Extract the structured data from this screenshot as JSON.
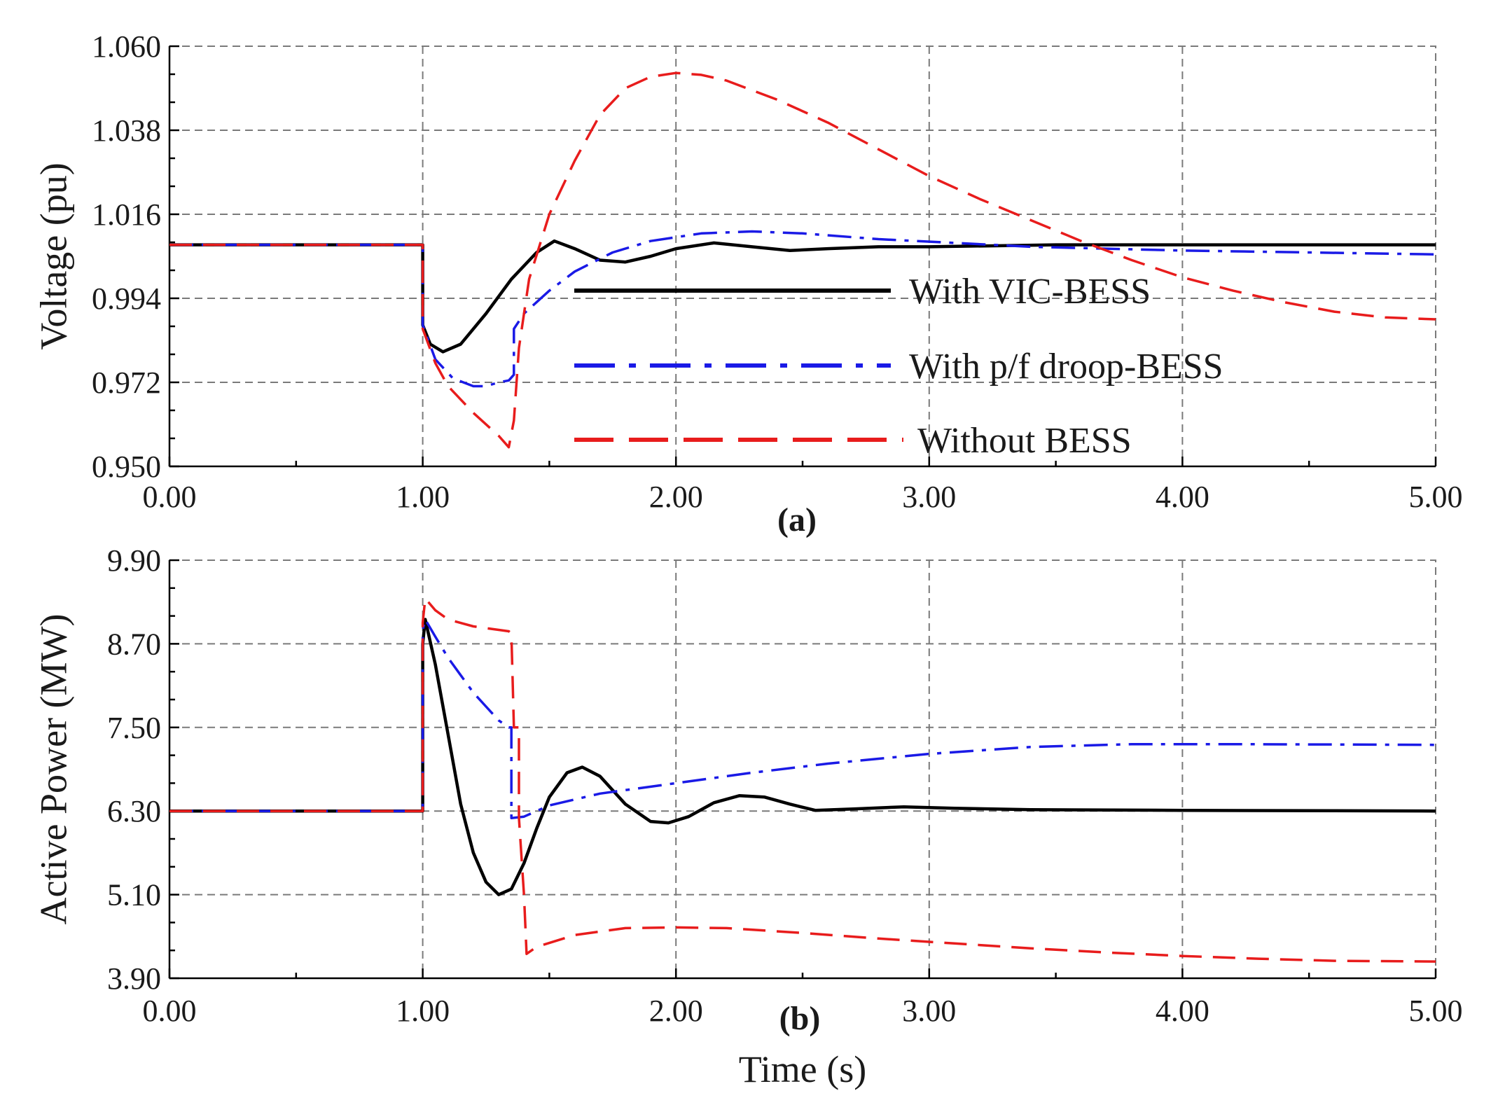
{
  "chart_data": [
    {
      "type": "line",
      "panel_label": "(a)",
      "xlabel": "",
      "ylabel": "Voltage (pu)",
      "xlim": [
        0,
        5
      ],
      "ylim": [
        0.95,
        1.06
      ],
      "x_ticks": [
        "0.00",
        "1.00",
        "2.00",
        "3.00",
        "4.00",
        "5.00"
      ],
      "y_ticks": [
        "0.950",
        "0.972",
        "0.994",
        "1.016",
        "1.038",
        "1.060"
      ],
      "grid": true,
      "legend_placement": "center-right",
      "series": [
        {
          "name": "With VIC-BESS",
          "color": "#000000",
          "style": "solid",
          "points": [
            [
              0,
              1.008
            ],
            [
              1.0,
              1.008
            ],
            [
              1.0,
              0.987
            ],
            [
              1.03,
              0.982
            ],
            [
              1.08,
              0.98
            ],
            [
              1.15,
              0.982
            ],
            [
              1.25,
              0.99
            ],
            [
              1.35,
              0.999
            ],
            [
              1.45,
              1.006
            ],
            [
              1.52,
              1.009
            ],
            [
              1.6,
              1.007
            ],
            [
              1.7,
              1.004
            ],
            [
              1.8,
              1.0035
            ],
            [
              1.9,
              1.005
            ],
            [
              2.0,
              1.007
            ],
            [
              2.15,
              1.0085
            ],
            [
              2.3,
              1.0075
            ],
            [
              2.45,
              1.0065
            ],
            [
              2.6,
              1.007
            ],
            [
              2.8,
              1.0075
            ],
            [
              3.0,
              1.0075
            ],
            [
              3.5,
              1.008
            ],
            [
              4.0,
              1.008
            ],
            [
              5.0,
              1.008
            ]
          ]
        },
        {
          "name": "With p/f droop-BESS",
          "color": "#1a1ae6",
          "style": "dashdot",
          "points": [
            [
              0,
              1.008
            ],
            [
              1.0,
              1.008
            ],
            [
              1.0,
              0.987
            ],
            [
              1.05,
              0.978
            ],
            [
              1.12,
              0.973
            ],
            [
              1.2,
              0.971
            ],
            [
              1.25,
              0.971
            ],
            [
              1.3,
              0.972
            ],
            [
              1.34,
              0.9725
            ],
            [
              1.36,
              0.974
            ],
            [
              1.36,
              0.986
            ],
            [
              1.4,
              0.99
            ],
            [
              1.5,
              0.996
            ],
            [
              1.6,
              1.001
            ],
            [
              1.75,
              1.006
            ],
            [
              1.9,
              1.009
            ],
            [
              2.1,
              1.011
            ],
            [
              2.3,
              1.0115
            ],
            [
              2.5,
              1.011
            ],
            [
              2.8,
              1.0095
            ],
            [
              3.1,
              1.0085
            ],
            [
              3.4,
              1.0075
            ],
            [
              3.7,
              1.007
            ],
            [
              4.0,
              1.0065
            ],
            [
              4.5,
              1.006
            ],
            [
              5.0,
              1.0055
            ]
          ]
        },
        {
          "name": "Without BESS",
          "color": "#e81c1c",
          "style": "dashed",
          "points": [
            [
              0,
              1.008
            ],
            [
              1.0,
              1.008
            ],
            [
              1.0,
              0.986
            ],
            [
              1.05,
              0.977
            ],
            [
              1.1,
              0.971
            ],
            [
              1.2,
              0.964
            ],
            [
              1.3,
              0.958
            ],
            [
              1.34,
              0.955
            ],
            [
              1.36,
              0.962
            ],
            [
              1.38,
              0.981
            ],
            [
              1.42,
              0.999
            ],
            [
              1.5,
              1.016
            ],
            [
              1.6,
              1.03
            ],
            [
              1.7,
              1.042
            ],
            [
              1.8,
              1.049
            ],
            [
              1.9,
              1.052
            ],
            [
              2.0,
              1.053
            ],
            [
              2.1,
              1.0525
            ],
            [
              2.2,
              1.051
            ],
            [
              2.4,
              1.046
            ],
            [
              2.6,
              1.04
            ],
            [
              2.8,
              1.033
            ],
            [
              3.0,
              1.026
            ],
            [
              3.2,
              1.02
            ],
            [
              3.4,
              1.0145
            ],
            [
              3.6,
              1.009
            ],
            [
              3.8,
              1.004
            ],
            [
              4.0,
              0.9995
            ],
            [
              4.2,
              0.996
            ],
            [
              4.4,
              0.993
            ],
            [
              4.6,
              0.9905
            ],
            [
              4.8,
              0.989
            ],
            [
              5.0,
              0.9885
            ]
          ]
        }
      ]
    },
    {
      "type": "line",
      "panel_label": "(b)",
      "xlabel": "Time (s)",
      "ylabel": "Active Power (MW)",
      "xlim": [
        0,
        5
      ],
      "ylim": [
        3.9,
        9.9
      ],
      "x_ticks": [
        "0.00",
        "1.00",
        "2.00",
        "3.00",
        "4.00",
        "5.00"
      ],
      "y_ticks": [
        "3.90",
        "5.10",
        "6.30",
        "7.50",
        "8.70",
        "9.90"
      ],
      "grid": true,
      "series": [
        {
          "name": "With VIC-BESS",
          "color": "#000000",
          "style": "solid",
          "points": [
            [
              0,
              6.3
            ],
            [
              1.0,
              6.3
            ],
            [
              1.0,
              8.7
            ],
            [
              1.01,
              9.05
            ],
            [
              1.05,
              8.4
            ],
            [
              1.1,
              7.4
            ],
            [
              1.15,
              6.4
            ],
            [
              1.2,
              5.7
            ],
            [
              1.25,
              5.28
            ],
            [
              1.3,
              5.1
            ],
            [
              1.35,
              5.18
            ],
            [
              1.4,
              5.55
            ],
            [
              1.45,
              6.05
            ],
            [
              1.5,
              6.5
            ],
            [
              1.57,
              6.85
            ],
            [
              1.63,
              6.93
            ],
            [
              1.7,
              6.8
            ],
            [
              1.8,
              6.4
            ],
            [
              1.9,
              6.15
            ],
            [
              1.97,
              6.13
            ],
            [
              2.05,
              6.22
            ],
            [
              2.15,
              6.42
            ],
            [
              2.25,
              6.52
            ],
            [
              2.35,
              6.5
            ],
            [
              2.45,
              6.4
            ],
            [
              2.55,
              6.31
            ],
            [
              2.7,
              6.33
            ],
            [
              2.9,
              6.36
            ],
            [
              3.1,
              6.34
            ],
            [
              3.4,
              6.32
            ],
            [
              4.0,
              6.31
            ],
            [
              5.0,
              6.3
            ]
          ]
        },
        {
          "name": "With p/f droop-BESS",
          "color": "#1a1ae6",
          "style": "dashdot",
          "points": [
            [
              0,
              6.3
            ],
            [
              1.0,
              6.3
            ],
            [
              1.0,
              8.9
            ],
            [
              1.01,
              9.05
            ],
            [
              1.05,
              8.8
            ],
            [
              1.1,
              8.5
            ],
            [
              1.15,
              8.25
            ],
            [
              1.2,
              8.0
            ],
            [
              1.25,
              7.8
            ],
            [
              1.3,
              7.6
            ],
            [
              1.34,
              7.5
            ],
            [
              1.35,
              7.5
            ],
            [
              1.35,
              6.2
            ],
            [
              1.4,
              6.22
            ],
            [
              1.5,
              6.38
            ],
            [
              1.7,
              6.55
            ],
            [
              2.0,
              6.7
            ],
            [
              2.3,
              6.85
            ],
            [
              2.6,
              6.98
            ],
            [
              3.0,
              7.12
            ],
            [
              3.4,
              7.22
            ],
            [
              3.8,
              7.26
            ],
            [
              4.2,
              7.26
            ],
            [
              5.0,
              7.25
            ]
          ]
        },
        {
          "name": "Without BESS",
          "color": "#e81c1c",
          "style": "dashed",
          "points": [
            [
              0,
              6.3
            ],
            [
              1.0,
              6.3
            ],
            [
              1.0,
              9.0
            ],
            [
              1.01,
              9.35
            ],
            [
              1.05,
              9.18
            ],
            [
              1.1,
              9.05
            ],
            [
              1.2,
              8.95
            ],
            [
              1.3,
              8.9
            ],
            [
              1.34,
              8.88
            ],
            [
              1.35,
              8.85
            ],
            [
              1.36,
              7.5
            ],
            [
              1.38,
              7.5
            ],
            [
              1.38,
              6.2
            ],
            [
              1.4,
              5.1
            ],
            [
              1.41,
              4.25
            ],
            [
              1.45,
              4.35
            ],
            [
              1.6,
              4.52
            ],
            [
              1.8,
              4.62
            ],
            [
              2.0,
              4.63
            ],
            [
              2.2,
              4.62
            ],
            [
              2.5,
              4.55
            ],
            [
              2.8,
              4.47
            ],
            [
              3.1,
              4.4
            ],
            [
              3.4,
              4.33
            ],
            [
              3.7,
              4.27
            ],
            [
              4.0,
              4.22
            ],
            [
              4.3,
              4.18
            ],
            [
              4.6,
              4.15
            ],
            [
              5.0,
              4.14
            ]
          ]
        }
      ]
    }
  ]
}
